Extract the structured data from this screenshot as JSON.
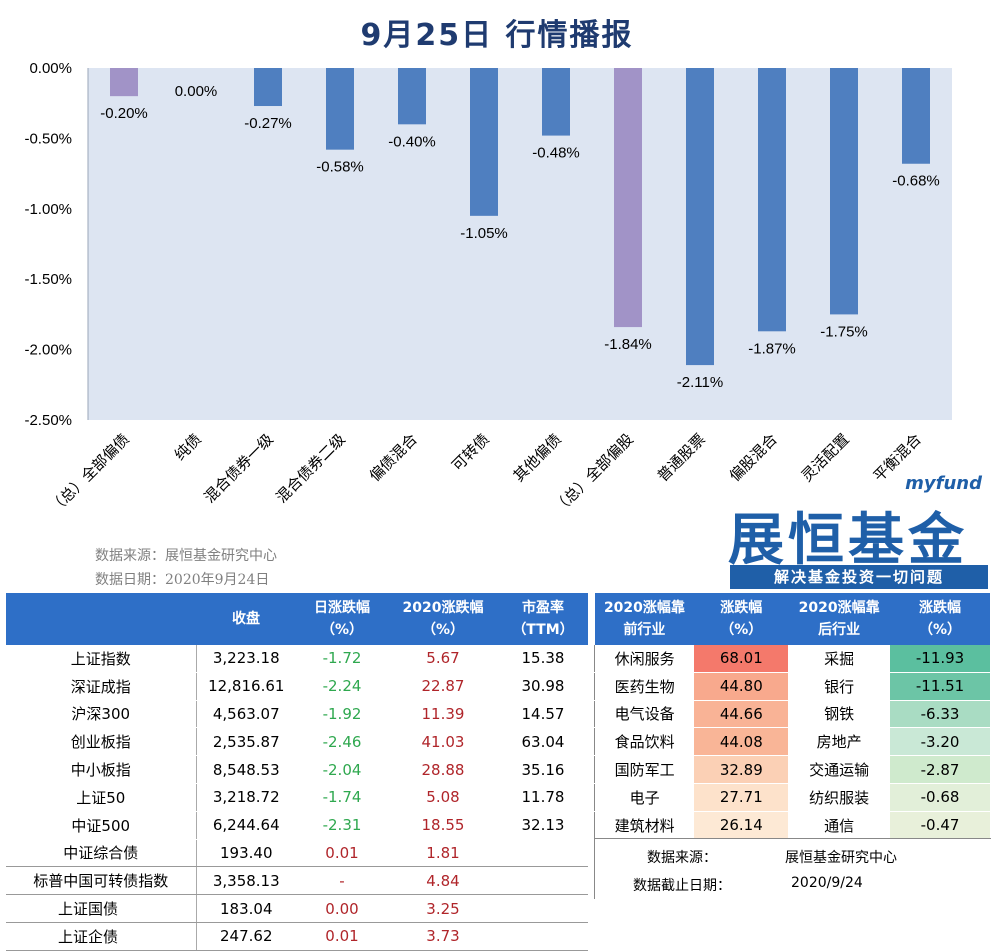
{
  "title": "9月25日  行情播报",
  "chart_data": {
    "type": "bar",
    "categories": [
      "（总）全部偏债",
      "纯债",
      "混合债券一级",
      "混合债券二级",
      "偏债混合",
      "可转债",
      "其他偏债",
      "（总）全部偏股",
      "普通股票",
      "偏股混合",
      "灵活配置",
      "平衡混合"
    ],
    "values": [
      -0.2,
      0.0,
      -0.27,
      -0.58,
      -0.4,
      -1.05,
      -0.48,
      -1.84,
      -2.11,
      -1.87,
      -1.75,
      -0.68
    ],
    "data_labels": [
      "-0.20%",
      "0.00%",
      "-0.27%",
      "-0.58%",
      "-0.40%",
      "-1.05%",
      "-0.48%",
      "-1.84%",
      "-2.11%",
      "-1.87%",
      "-1.75%",
      "-0.68%"
    ],
    "highlight": [
      true,
      false,
      false,
      false,
      false,
      false,
      false,
      true,
      false,
      false,
      false,
      false
    ],
    "yticks": [
      "0.00%",
      "-0.50%",
      "-1.00%",
      "-1.50%",
      "-2.00%",
      "-2.50%"
    ],
    "ylim": [
      -2.5,
      0
    ],
    "colors": {
      "bar": "#4f7fc0",
      "highlight": "#a193c7",
      "plot_bg": "#dde5f2"
    }
  },
  "source": {
    "line1": "数据来源：展恒基金研究中心",
    "line2": "数据日期：2020年9月24日"
  },
  "logo": {
    "small": "myfund",
    "big": "展恒基金",
    "slogan": "解决基金投资一切问题"
  },
  "left_table": {
    "headers": [
      "",
      "收盘",
      "日涨跌幅\n（%）",
      "2020涨跌幅\n（%）",
      "市盈率\n（TTM）"
    ],
    "rows": [
      {
        "name": "上证指数",
        "close": "3,223.18",
        "day": "-1.72",
        "ytd": "5.67",
        "pe": "15.38"
      },
      {
        "name": "深证成指",
        "close": "12,816.61",
        "day": "-2.24",
        "ytd": "22.87",
        "pe": "30.98"
      },
      {
        "name": "沪深300",
        "close": "4,563.07",
        "day": "-1.92",
        "ytd": "11.39",
        "pe": "14.57"
      },
      {
        "name": "创业板指",
        "close": "2,535.87",
        "day": "-2.46",
        "ytd": "41.03",
        "pe": "63.04"
      },
      {
        "name": "中小板指",
        "close": "8,548.53",
        "day": "-2.04",
        "ytd": "28.88",
        "pe": "35.16"
      },
      {
        "name": "上证50",
        "close": "3,218.72",
        "day": "-1.74",
        "ytd": "5.08",
        "pe": "11.78"
      },
      {
        "name": "中证500",
        "close": "6,244.64",
        "day": "-2.31",
        "ytd": "18.55",
        "pe": "32.13"
      },
      {
        "name": "中证综合债",
        "close": "193.40",
        "day": "0.01",
        "ytd": "1.81",
        "pe": ""
      },
      {
        "name": "标普中国可转债指数",
        "close": "3,358.13",
        "day": "-",
        "ytd": "4.84",
        "pe": ""
      },
      {
        "name": "上证国债",
        "close": "183.04",
        "day": "0.00",
        "ytd": "3.25",
        "pe": ""
      },
      {
        "name": "上证企债",
        "close": "247.62",
        "day": "0.01",
        "ytd": "3.73",
        "pe": ""
      }
    ]
  },
  "right_table": {
    "headers": [
      "2020涨幅靠\n前行业",
      "涨跌幅\n（%）",
      "2020涨幅靠\n后行业",
      "涨跌幅\n（%）"
    ],
    "rows": [
      {
        "top": "休闲服务",
        "top_val": "68.01",
        "bot": "采掘",
        "bot_val": "-11.93"
      },
      {
        "top": "医药生物",
        "top_val": "44.80",
        "bot": "银行",
        "bot_val": "-11.51"
      },
      {
        "top": "电气设备",
        "top_val": "44.66",
        "bot": "钢铁",
        "bot_val": "-6.33"
      },
      {
        "top": "食品饮料",
        "top_val": "44.08",
        "bot": "房地产",
        "bot_val": "-3.20"
      },
      {
        "top": "国防军工",
        "top_val": "32.89",
        "bot": "交通运输",
        "bot_val": "-2.87"
      },
      {
        "top": "电子",
        "top_val": "27.71",
        "bot": "纺织服装",
        "bot_val": "-0.68"
      },
      {
        "top": "建筑材料",
        "top_val": "26.14",
        "bot": "通信",
        "bot_val": "-0.47"
      }
    ],
    "top_colors": [
      "#f4796b",
      "#f8a98d",
      "#f9b396",
      "#f9b597",
      "#fbd0b5",
      "#fde2cb",
      "#fde9d5"
    ],
    "bot_colors": [
      "#5bbf9f",
      "#6cc5a6",
      "#a9dcc3",
      "#c9e8d6",
      "#cfeacd",
      "#e2efd9",
      "#e8f0da"
    ],
    "footer_label1": "数据来源：",
    "footer_value1": "展恒基金研究中心",
    "footer_label2": "数据截止日期：",
    "footer_value2": "2020/9/24"
  }
}
